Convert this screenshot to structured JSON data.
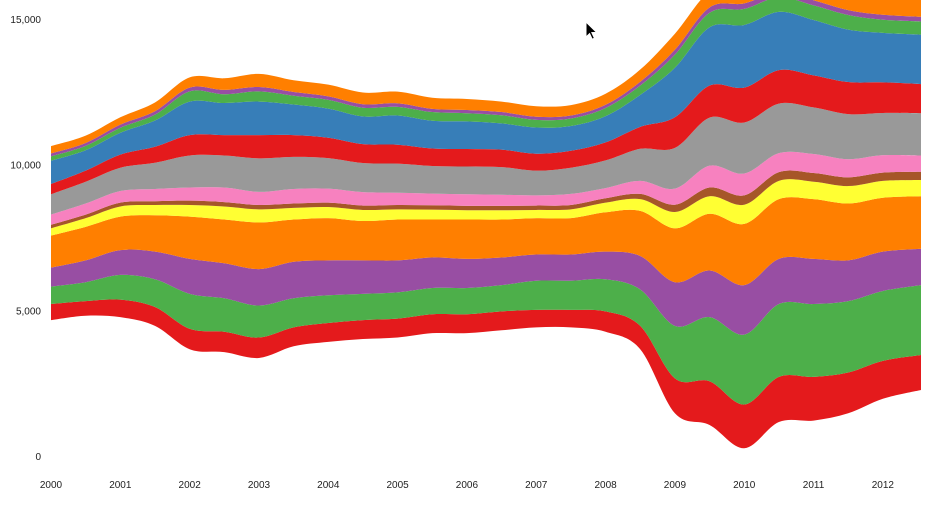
{
  "chart_data": {
    "type": "area",
    "subtype": "streamgraph",
    "xlim": [
      2000.0,
      2012.55
    ],
    "ylim": [
      0,
      15000
    ],
    "x_ticks": [
      2000,
      2001,
      2002,
      2003,
      2004,
      2005,
      2006,
      2007,
      2008,
      2009,
      2010,
      2011,
      2012
    ],
    "x_tick_labels": [
      "2000",
      "2001",
      "2002",
      "2003",
      "2004",
      "2005",
      "2006",
      "2007",
      "2008",
      "2009",
      "2010",
      "2011",
      "2012"
    ],
    "y_ticks": [
      0,
      5000,
      10000,
      15000
    ],
    "y_tick_labels": [
      "0",
      "5,000",
      "10,000",
      "15,000"
    ],
    "x": [
      2000.0,
      2000.5,
      2001.0,
      2001.5,
      2002.0,
      2002.5,
      2003.0,
      2003.5,
      2004.0,
      2004.5,
      2005.0,
      2005.5,
      2006.0,
      2006.5,
      2007.0,
      2007.5,
      2008.0,
      2008.5,
      2009.0,
      2009.5,
      2010.0,
      2010.5,
      2011.0,
      2011.5,
      2012.0,
      2012.55
    ],
    "baseline": [
      4700,
      4850,
      4800,
      4500,
      3700,
      3600,
      3400,
      3800,
      3950,
      4050,
      4100,
      4250,
      4250,
      4350,
      4450,
      4450,
      4300,
      3700,
      1500,
      1100,
      300,
      1200,
      1250,
      1500,
      2000,
      2300
    ],
    "series": [
      {
        "color": "#e41a1c",
        "values": [
          550,
          500,
          600,
          650,
          700,
          700,
          700,
          650,
          650,
          650,
          650,
          650,
          650,
          650,
          600,
          600,
          700,
          800,
          1200,
          1500,
          1500,
          1550,
          1500,
          1400,
          1300,
          1200
        ]
      },
      {
        "color": "#4daf4a",
        "values": [
          600,
          650,
          850,
          950,
          1200,
          1150,
          1100,
          1000,
          950,
          900,
          900,
          900,
          900,
          900,
          1000,
          1000,
          1100,
          1250,
          1800,
          2200,
          2400,
          2500,
          2500,
          2450,
          2400,
          2400
        ]
      },
      {
        "color": "#984ea3",
        "values": [
          650,
          750,
          850,
          950,
          1200,
          1200,
          1250,
          1250,
          1200,
          1150,
          1100,
          1050,
          1000,
          950,
          900,
          900,
          950,
          1150,
          1500,
          1600,
          1700,
          1550,
          1550,
          1400,
          1350,
          1250
        ]
      },
      {
        "color": "#ff7f00",
        "values": [
          1100,
          1150,
          1150,
          1250,
          1450,
          1500,
          1600,
          1450,
          1450,
          1350,
          1400,
          1300,
          1350,
          1300,
          1250,
          1250,
          1350,
          1550,
          1850,
          1950,
          2100,
          2050,
          2050,
          1950,
          1850,
          1800
        ]
      },
      {
        "color": "#ffff33",
        "values": [
          250,
          300,
          350,
          350,
          400,
          450,
          450,
          400,
          380,
          380,
          350,
          340,
          320,
          320,
          280,
          300,
          330,
          400,
          560,
          600,
          660,
          630,
          600,
          600,
          580,
          560
        ]
      },
      {
        "color": "#a65628",
        "values": [
          120,
          120,
          130,
          130,
          150,
          150,
          150,
          150,
          150,
          150,
          150,
          150,
          150,
          150,
          150,
          150,
          150,
          180,
          250,
          300,
          320,
          300,
          300,
          300,
          280,
          280
        ]
      },
      {
        "color": "#f781bf",
        "values": [
          350,
          380,
          400,
          420,
          450,
          500,
          450,
          500,
          480,
          460,
          420,
          400,
          400,
          380,
          350,
          380,
          350,
          450,
          550,
          750,
          750,
          650,
          650,
          620,
          600,
          560
        ]
      },
      {
        "color": "#999999",
        "values": [
          700,
          750,
          800,
          900,
          1100,
          1100,
          1150,
          1100,
          1050,
          1000,
          1000,
          950,
          950,
          950,
          850,
          900,
          950,
          1100,
          1400,
          1650,
          1750,
          1700,
          1600,
          1550,
          1450,
          1450
        ]
      },
      {
        "color": "#e41a1c",
        "values": [
          350,
          380,
          450,
          550,
          700,
          700,
          800,
          750,
          700,
          650,
          650,
          600,
          600,
          600,
          580,
          580,
          620,
          750,
          1050,
          1100,
          1200,
          1150,
          1100,
          1100,
          1050,
          1000
        ]
      },
      {
        "color": "#377eb8",
        "values": [
          800,
          700,
          750,
          900,
          1150,
          1100,
          1150,
          1050,
          1000,
          950,
          1000,
          950,
          950,
          900,
          900,
          850,
          900,
          1100,
          1700,
          2000,
          2150,
          2000,
          1900,
          1800,
          1700,
          1700
        ]
      },
      {
        "color": "#4daf4a",
        "values": [
          150,
          150,
          170,
          200,
          350,
          300,
          350,
          300,
          300,
          300,
          300,
          300,
          280,
          280,
          260,
          260,
          280,
          320,
          450,
          500,
          550,
          500,
          500,
          500,
          450,
          450
        ]
      },
      {
        "color": "#984ea3",
        "values": [
          100,
          100,
          110,
          120,
          130,
          150,
          150,
          130,
          120,
          120,
          120,
          110,
          110,
          110,
          110,
          100,
          110,
          130,
          170,
          180,
          190,
          180,
          180,
          170,
          170,
          160
        ]
      },
      {
        "color": "#ff7f00",
        "values": [
          250,
          250,
          250,
          300,
          350,
          400,
          450,
          400,
          400,
          400,
          400,
          380,
          380,
          360,
          360,
          360,
          380,
          420,
          550,
          550,
          650,
          550,
          600,
          600,
          580,
          580
        ]
      }
    ]
  }
}
